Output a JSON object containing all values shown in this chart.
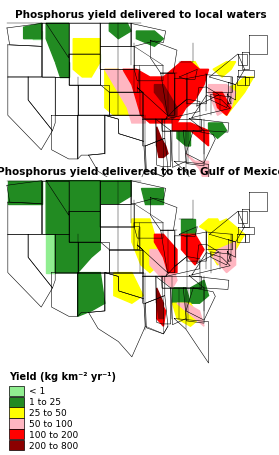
{
  "title1": "Phosphorus yield delivered to local waters",
  "title2": "Phosphorus yield delivered to the Gulf of Mexico",
  "legend_title": "Yield (kg km⁻² yr⁻¹)",
  "legend_labels": [
    "< 1",
    "1 to 25",
    "25 to 50",
    "50 to 100",
    "100 to 200",
    "200 to 800"
  ],
  "legend_colors": [
    "#90EE90",
    "#228B22",
    "#FFFF00",
    "#FFB6C1",
    "#FF0000",
    "#8B0000"
  ],
  "background_color": "#ffffff",
  "title_fontsize": 7.5,
  "legend_fontsize": 6.5,
  "fig_width": 2.79,
  "fig_height": 4.56,
  "lon_min": -125,
  "lon_max": -65,
  "lat_min": 24.5,
  "lat_max": 49.5
}
